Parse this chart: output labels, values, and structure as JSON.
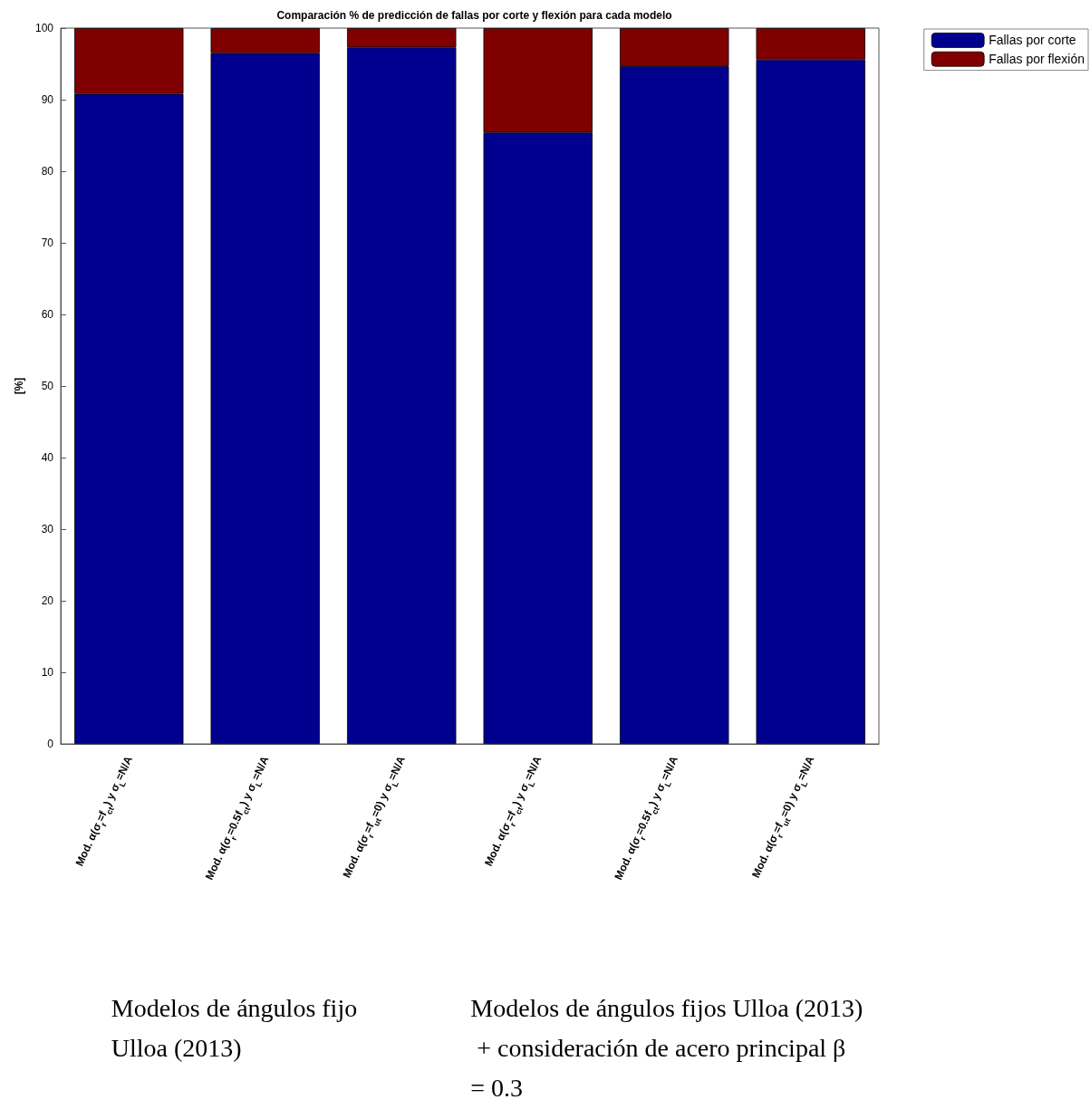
{
  "chart_data": {
    "type": "bar",
    "title": "Comparación % de predicción de fallas por corte y flexión para cada modelo",
    "ylabel": "[%]",
    "categories": [
      "Mod. α(σ$_{r}$=f$_{ct}$) y σ$_{L}$=N/A",
      "Mod. α(σ$_{r}$=0.5f$_{ct}$) y σ$_{L}$=N/A",
      "Mod. α(σ$_{r}$=f$_{ut}$=0) y σ$_{L}$=N/A",
      "Mod. α(σ$_{r}$=f$_{ct}$) y σ$_{L}$=N/A",
      "Mod. α(σ$_{r}$=0.5f$_{ct}$) y σ$_{L}$=N/A",
      "Mod. α(σ$_{r}$=f$_{ut}$=0) y σ$_{L}$=N/A"
    ],
    "series": [
      {
        "name": "Fallas por corte",
        "color": "#00008f",
        "values": [
          90.8,
          96.5,
          97.3,
          85.4,
          94.7,
          95.6
        ]
      },
      {
        "name": "Fallas por flexión",
        "color": "#800000",
        "values": [
          9.2,
          3.5,
          2.7,
          14.6,
          5.3,
          4.4
        ]
      }
    ],
    "stacked": true,
    "ylim": [
      0,
      100
    ],
    "yticks": [
      0,
      10,
      20,
      30,
      40,
      50,
      60,
      70,
      80,
      90,
      100
    ],
    "grid": false,
    "legend": "top right",
    "annotations": [
      "Modelos de ángulos fijo Ulloa (2013)",
      "Modelos de ángulos fijos Ulloa (2013) + consideración de acero principal β = 0.3"
    ]
  }
}
